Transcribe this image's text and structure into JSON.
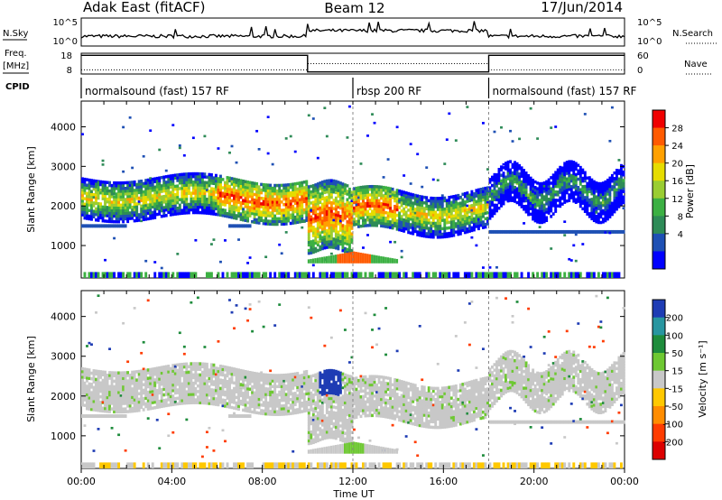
{
  "header": {
    "site_title": "Adak East (fitACF)",
    "beam": "Beam 12",
    "date": "17/Jun/2014"
  },
  "labels": {
    "nsky": "N.Sky",
    "nsearch": "N.Search",
    "freq_line1": "Freq.",
    "freq_line2": "[MHz]",
    "nave": "Nave",
    "cpid": "CPID"
  },
  "nsky_panel": {
    "left_ticks": [
      "10^5",
      "10^0"
    ],
    "right_ticks": [
      "10^5",
      "10^0"
    ]
  },
  "freq_panel": {
    "left_ticks": [
      "18",
      "8"
    ],
    "right_ticks": [
      "60",
      "0"
    ],
    "freq_steps": [
      {
        "t0": 0,
        "t1": 10,
        "level": 0.9
      },
      {
        "t0": 10,
        "t1": 18,
        "level": 0.1
      },
      {
        "t0": 18,
        "t1": 24,
        "level": 0.9
      }
    ],
    "nave_steps": [
      {
        "t0": 0,
        "t1": 10,
        "level": 0.2
      },
      {
        "t0": 10,
        "t1": 18,
        "level": 0.5
      },
      {
        "t0": 18,
        "t1": 24,
        "level": 0.2
      }
    ]
  },
  "cpid_segments": [
    {
      "label": "normalsound (fast) 157 RF",
      "t0": 0,
      "t1": 12
    },
    {
      "label": "rbsp 200 RF",
      "t0": 12,
      "t1": 18
    },
    {
      "label": "normalsound (fast) 157 RF",
      "t0": 18,
      "t1": 24
    }
  ],
  "chart_data": [
    {
      "type": "heatmap",
      "name": "power",
      "ylabel": "Slant Range [km]",
      "ylim": [
        180,
        4650
      ],
      "yticks": [
        1000,
        2000,
        3000,
        4000
      ],
      "colorbar_label": "Power [dB]",
      "colorbar_ticks": [
        "28",
        "24",
        "20",
        "16",
        "12",
        "8",
        "4"
      ],
      "colorbar_colors": [
        "#f00000",
        "#ff5a00",
        "#ffa000",
        "#e6dc00",
        "#9acd32",
        "#3cb043",
        "#2e8b57",
        "#1e50b4",
        "#0000ff"
      ]
    },
    {
      "type": "heatmap",
      "name": "velocity",
      "ylabel": "Slant Range [km]",
      "ylim": [
        180,
        4650
      ],
      "yticks": [
        1000,
        2000,
        3000,
        4000
      ],
      "colorbar_label": "Velocity [m s⁻¹]",
      "colorbar_ticks": [
        "200",
        "100",
        "50",
        "15",
        "-15",
        "-50",
        "-100",
        "-200"
      ],
      "colorbar_colors": [
        "#1e3cb4",
        "#2896a0",
        "#1e8c3c",
        "#6ec832",
        "#c8c8c8",
        "#ffc800",
        "#ff8c00",
        "#ff3c00",
        "#dc0000"
      ]
    }
  ],
  "time_axis": {
    "tick_labels": [
      "00:00",
      "04:00",
      "08:00",
      "12:00",
      "16:00",
      "20:00",
      "00:00"
    ],
    "xlabel": "Time UT"
  }
}
